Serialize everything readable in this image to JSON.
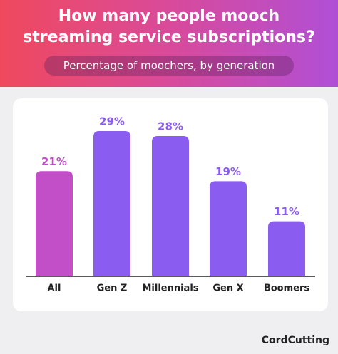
{
  "chart_data": {
    "type": "bar",
    "title": "How many people mooch streaming service subscriptions?",
    "subtitle": "Percentage of moochers, by generation",
    "categories": [
      "All",
      "Gen Z",
      "Millennials",
      "Gen X",
      "Boomers"
    ],
    "values": [
      21,
      29,
      28,
      19,
      11
    ],
    "value_labels": [
      "21%",
      "29%",
      "28%",
      "19%",
      "11%"
    ],
    "colors": [
      "#c24fc8",
      "#8b5cf0",
      "#8b5cf0",
      "#8b5cf0",
      "#8b5cf0"
    ],
    "logo": "CordCutting"
  }
}
